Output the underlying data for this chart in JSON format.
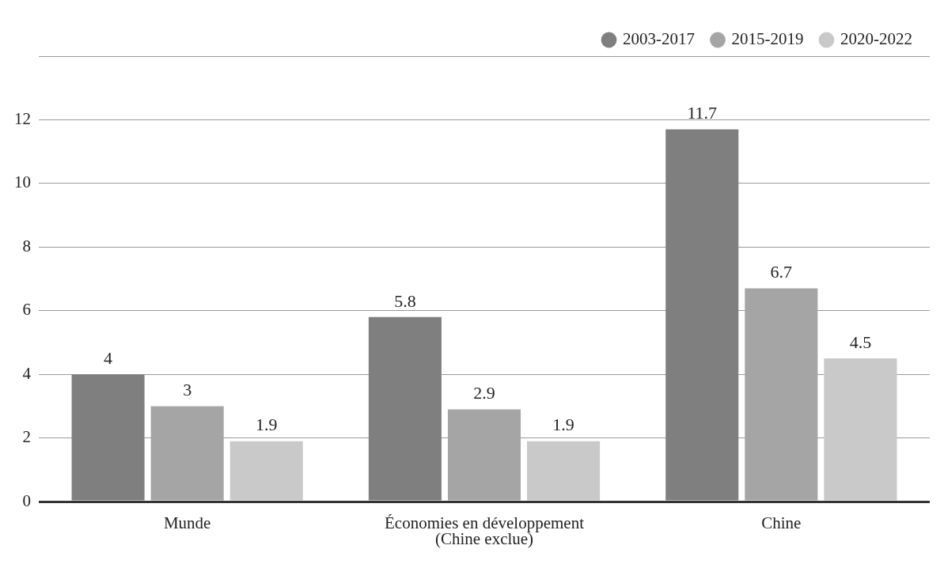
{
  "chart_data": {
    "type": "bar",
    "categories": [
      "Munde",
      "Économies en développement\n(Chine exclue)",
      "Chine"
    ],
    "series": [
      {
        "name": "2003-2017",
        "color": "#7f7f7f",
        "values": [
          4,
          5.8,
          11.7
        ]
      },
      {
        "name": "2015-2019",
        "color": "#a5a5a5",
        "values": [
          3,
          2.9,
          6.7
        ]
      },
      {
        "name": "2020-2022",
        "color": "#c9c9c9",
        "values": [
          1.9,
          1.9,
          4.5
        ]
      }
    ],
    "ylim": [
      0,
      14
    ],
    "yticks": [
      0,
      2,
      4,
      6,
      8,
      10,
      12,
      {
        "value": 14,
        "label": null
      }
    ],
    "grid": "y",
    "legend": "top right",
    "data_labels": true
  }
}
